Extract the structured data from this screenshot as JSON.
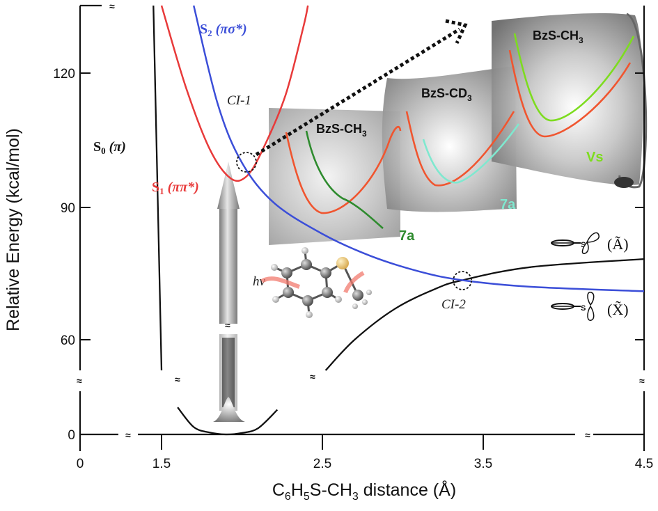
{
  "chart_data": {
    "type": "line",
    "xlabel_parts": [
      "C",
      "6",
      "H",
      "5",
      "S-CH",
      "3",
      " distance (",
      "Å",
      ")"
    ],
    "ylabel": "Relative Energy (kcal/mol)",
    "x_ticks": [
      "0",
      "1.5",
      "2.5",
      "3.5",
      "4.5"
    ],
    "y_ticks": [
      "0",
      "60",
      "90",
      "120"
    ],
    "axis_break_symbol": "≈",
    "series": [
      {
        "key": "S0",
        "label_main": "S",
        "label_sub": "0",
        "label_rest": " (π)",
        "color": "#111111",
        "points": [
          [
            1.35,
            135
          ],
          [
            1.5,
            52
          ],
          [
            1.62,
            10
          ],
          [
            1.75,
            2
          ],
          [
            1.9,
            0
          ],
          [
            2.05,
            2
          ],
          [
            2.2,
            8
          ],
          [
            2.55,
            52
          ],
          [
            2.8,
            63
          ],
          [
            3.1,
            70
          ],
          [
            3.37,
            73.5
          ],
          [
            3.8,
            76.5
          ],
          [
            4.5,
            78.5
          ]
        ]
      },
      {
        "key": "S1",
        "label_main": "S",
        "label_sub": "1",
        "label_rest": " (ππ*)",
        "color": "#e83a3a",
        "points": [
          [
            1.5,
            135
          ],
          [
            1.65,
            117
          ],
          [
            1.8,
            103
          ],
          [
            1.93,
            96.5
          ],
          [
            2.03,
            97
          ],
          [
            2.13,
            103
          ],
          [
            2.27,
            115
          ],
          [
            2.38,
            130
          ],
          [
            2.41,
            135
          ]
        ]
      },
      {
        "key": "S2",
        "label_main": "S",
        "label_sub": "2",
        "label_rest": " (πσ*)",
        "color": "#3b4ed8",
        "points": [
          [
            1.7,
            135
          ],
          [
            1.85,
            113
          ],
          [
            2.0,
            100
          ],
          [
            2.2,
            91
          ],
          [
            2.5,
            84
          ],
          [
            2.8,
            79
          ],
          [
            3.1,
            75.5
          ],
          [
            3.37,
            73.5
          ],
          [
            3.8,
            72
          ],
          [
            4.5,
            71
          ]
        ]
      }
    ],
    "annotations": {
      "ci1": "CI-1",
      "ci2": "CI-2",
      "hv": "hν",
      "panel_labels": [
        "BzS-CH",
        "3",
        "BzS-CD",
        "3",
        "BzS-CH",
        "3"
      ],
      "mode_7a_1": "7a",
      "mode_7a_2": "7a",
      "mode_vs": "Vs",
      "state_a": "(Ã)",
      "state_x": "(X̃)",
      "s_atom": "S"
    },
    "colors": {
      "s0": "#111111",
      "s1": "#e83a3a",
      "s2": "#3b4ed8",
      "mode_dark_green": "#2e8b2e",
      "mode_cyan": "#7fe8cf",
      "mode_light_green": "#7ddc1f",
      "panel_gray": "#8c8c8c"
    }
  }
}
